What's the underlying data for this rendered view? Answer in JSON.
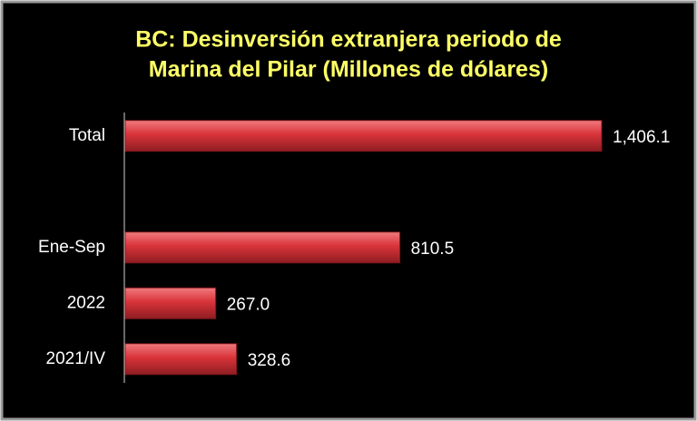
{
  "chart_data": {
    "type": "bar",
    "orientation": "horizontal",
    "title": [
      "BC: Desinversión extranjera periodo de",
      "Marina del Pilar  (Millones de dólares)"
    ],
    "categories": [
      "Total",
      null,
      "Ene-Sep",
      "2022",
      "2021/IV"
    ],
    "values": [
      1406.1,
      null,
      810.5,
      267.0,
      328.6
    ],
    "value_labels": [
      "1,406.1",
      null,
      "810.5",
      "267.0",
      "328.6"
    ],
    "color": "#d9343a"
  }
}
